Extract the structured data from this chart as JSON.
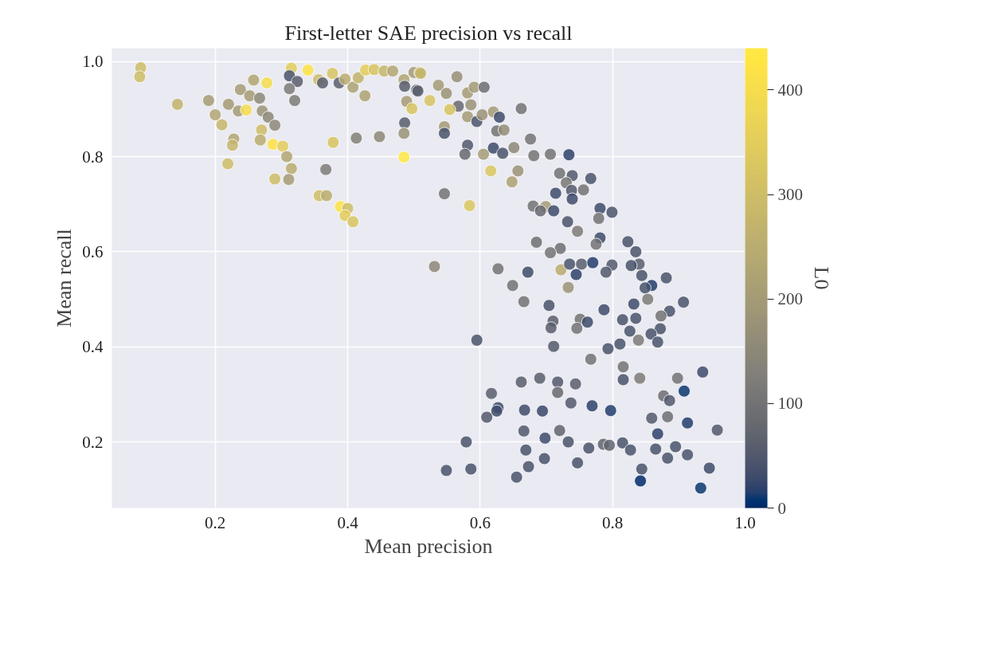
{
  "chart_data": {
    "type": "scatter",
    "title": "First-letter SAE precision vs recall",
    "xlabel": "Mean precision",
    "ylabel": "Mean recall",
    "clabel": "L0",
    "xlim": [
      0.044,
      1.0
    ],
    "xticks": [
      0.2,
      0.4,
      0.6,
      0.8,
      {
        "value": 1.0,
        "label": "1.0"
      }
    ],
    "ylim": [
      0.061,
      1.028
    ],
    "yticks": [
      0.2,
      0.4,
      0.6,
      0.8,
      {
        "value": 1.0,
        "label": "1.0"
      }
    ],
    "clim": [
      0,
      440
    ],
    "cticks": [
      0,
      100,
      200,
      300,
      400
    ],
    "grid": true,
    "marker": "circle",
    "x": [
      0.0875,
      0.086,
      0.143,
      0.19,
      0.2,
      0.21,
      0.22,
      0.228,
      0.226,
      0.219,
      0.238,
      0.235,
      0.247,
      0.252,
      0.258,
      0.267,
      0.278,
      0.271,
      0.28,
      0.29,
      0.27,
      0.268,
      0.287,
      0.302,
      0.308,
      0.315,
      0.311,
      0.29,
      0.315,
      0.312,
      0.324,
      0.312,
      0.32,
      0.34,
      0.356,
      0.362,
      0.377,
      0.387,
      0.396,
      0.408,
      0.416,
      0.427,
      0.44,
      0.455,
      0.468,
      0.426,
      0.485,
      0.486,
      0.504,
      0.5,
      0.509,
      0.489,
      0.497,
      0.486,
      0.485,
      0.485,
      0.378,
      0.413,
      0.448,
      0.367,
      0.357,
      0.368,
      0.389,
      0.4,
      0.396,
      0.408,
      0.51,
      0.506,
      0.524,
      0.537,
      0.549,
      0.565,
      0.567,
      0.554,
      0.581,
      0.591,
      0.606,
      0.586,
      0.581,
      0.595,
      0.603,
      0.62,
      0.629,
      0.625,
      0.636,
      0.662,
      0.546,
      0.546,
      0.581,
      0.577,
      0.605,
      0.62,
      0.634,
      0.651,
      0.676,
      0.681,
      0.706,
      0.734,
      0.616,
      0.657,
      0.648,
      0.546,
      0.584,
      0.72,
      0.739,
      0.767,
      0.73,
      0.738,
      0.756,
      0.714,
      0.739,
      0.68,
      0.699,
      0.711,
      0.691,
      0.732,
      0.747,
      0.781,
      0.799,
      0.779,
      0.781,
      0.775,
      0.685,
      0.721,
      0.706,
      0.823,
      0.835,
      0.531,
      0.627,
      0.672,
      0.722,
      0.735,
      0.753,
      0.77,
      0.799,
      0.79,
      0.84,
      0.828,
      0.844,
      0.881,
      0.745,
      0.649,
      0.666,
      0.704,
      0.733,
      0.859,
      0.849,
      0.853,
      0.832,
      0.907,
      0.886,
      0.873,
      0.872,
      0.858,
      0.868,
      0.839,
      0.835,
      0.815,
      0.826,
      0.811,
      0.793,
      0.787,
      0.71,
      0.707,
      0.751,
      0.762,
      0.746,
      0.711,
      0.595,
      0.767,
      0.816,
      0.841,
      0.816,
      0.898,
      0.936,
      0.908,
      0.877,
      0.886,
      0.883,
      0.859,
      0.913,
      0.958,
      0.868,
      0.662,
      0.69,
      0.717,
      0.744,
      0.717,
      0.617,
      0.627,
      0.625,
      0.61,
      0.667,
      0.694,
      0.737,
      0.769,
      0.797,
      0.666,
      0.698,
      0.72,
      0.733,
      0.764,
      0.786,
      0.795,
      0.815,
      0.827,
      0.865,
      0.883,
      0.895,
      0.913,
      0.946,
      0.933,
      0.844,
      0.842,
      0.579,
      0.549,
      0.586,
      0.655,
      0.673,
      0.697,
      0.747,
      0.669
    ],
    "values": [
      0.987,
      0.968,
      0.91,
      0.918,
      0.888,
      0.867,
      0.91,
      0.837,
      0.824,
      0.785,
      0.941,
      0.896,
      0.898,
      0.928,
      0.961,
      0.923,
      0.955,
      0.896,
      0.883,
      0.866,
      0.856,
      0.835,
      0.826,
      0.822,
      0.8,
      0.775,
      0.752,
      0.753,
      0.986,
      0.97,
      0.958,
      0.943,
      0.918,
      0.982,
      0.962,
      0.955,
      0.975,
      0.955,
      0.963,
      0.946,
      0.966,
      0.982,
      0.983,
      0.98,
      0.98,
      0.928,
      0.962,
      0.948,
      0.94,
      0.977,
      0.977,
      0.916,
      0.901,
      0.871,
      0.849,
      0.799,
      0.83,
      0.839,
      0.842,
      0.773,
      0.718,
      0.718,
      0.695,
      0.691,
      0.676,
      0.663,
      0.975,
      0.938,
      0.918,
      0.95,
      0.933,
      0.968,
      0.906,
      0.899,
      0.934,
      0.946,
      0.946,
      0.909,
      0.884,
      0.874,
      0.888,
      0.894,
      0.883,
      0.854,
      0.856,
      0.901,
      0.863,
      0.849,
      0.824,
      0.805,
      0.805,
      0.818,
      0.807,
      0.819,
      0.837,
      0.802,
      0.805,
      0.804,
      0.77,
      0.77,
      0.747,
      0.722,
      0.697,
      0.765,
      0.76,
      0.754,
      0.745,
      0.729,
      0.73,
      0.723,
      0.711,
      0.696,
      0.695,
      0.686,
      0.686,
      0.663,
      0.643,
      0.691,
      0.683,
      0.67,
      0.629,
      0.616,
      0.62,
      0.607,
      0.598,
      0.621,
      0.6,
      0.569,
      0.564,
      0.557,
      0.562,
      0.574,
      0.574,
      0.577,
      0.572,
      0.557,
      0.574,
      0.571,
      0.55,
      0.545,
      0.552,
      0.529,
      0.495,
      0.487,
      0.525,
      0.529,
      0.524,
      0.5,
      0.49,
      0.494,
      0.475,
      0.465,
      0.438,
      0.427,
      0.41,
      0.414,
      0.46,
      0.457,
      0.433,
      0.406,
      0.396,
      0.478,
      0.454,
      0.44,
      0.458,
      0.452,
      0.439,
      0.401,
      0.414,
      0.374,
      0.358,
      0.334,
      0.331,
      0.334,
      0.347,
      0.307,
      0.297,
      0.287,
      0.253,
      0.25,
      0.24,
      0.225,
      0.217,
      0.326,
      0.334,
      0.326,
      0.322,
      0.304,
      0.302,
      0.272,
      0.265,
      0.252,
      0.267,
      0.265,
      0.282,
      0.276,
      0.266,
      0.223,
      0.208,
      0.224,
      0.2,
      0.187,
      0.195,
      0.193,
      0.198,
      0.183,
      0.185,
      0.166,
      0.19,
      0.173,
      0.145,
      0.103,
      0.143,
      0.118,
      0.2,
      0.14,
      0.143,
      0.126,
      0.148,
      0.165,
      0.156,
      0.183
    ],
    "cvalues": [
      300,
      300,
      270,
      200,
      230,
      280,
      200,
      230,
      280,
      300,
      200,
      200,
      400,
      200,
      230,
      150,
      400,
      180,
      150,
      150,
      300,
      250,
      420,
      350,
      230,
      250,
      200,
      300,
      350,
      40,
      60,
      120,
      120,
      420,
      300,
      60,
      320,
      60,
      250,
      220,
      270,
      350,
      320,
      280,
      230,
      220,
      230,
      60,
      70,
      200,
      250,
      200,
      320,
      60,
      180,
      440,
      320,
      130,
      150,
      120,
      300,
      250,
      420,
      300,
      350,
      320,
      280,
      60,
      320,
      200,
      180,
      170,
      80,
      320,
      200,
      200,
      90,
      180,
      200,
      40,
      180,
      200,
      30,
      100,
      160,
      100,
      200,
      40,
      50,
      80,
      200,
      30,
      40,
      150,
      100,
      100,
      100,
      20,
      330,
      180,
      220,
      100,
      330,
      100,
      50,
      40,
      110,
      50,
      100,
      30,
      30,
      100,
      200,
      30,
      80,
      40,
      120,
      30,
      40,
      100,
      30,
      100,
      90,
      90,
      100,
      40,
      40,
      150,
      100,
      30,
      250,
      40,
      60,
      15,
      50,
      50,
      60,
      40,
      40,
      40,
      20,
      100,
      100,
      40,
      180,
      15,
      40,
      120,
      30,
      40,
      40,
      100,
      40,
      40,
      40,
      120,
      40,
      40,
      40,
      40,
      40,
      30,
      60,
      60,
      100,
      30,
      100,
      50,
      40,
      100,
      100,
      120,
      40,
      100,
      30,
      10,
      90,
      50,
      90,
      50,
      15,
      50,
      20,
      60,
      60,
      50,
      60,
      80,
      60,
      30,
      30,
      50,
      30,
      25,
      50,
      20,
      15,
      50,
      30,
      70,
      40,
      40,
      70,
      70,
      40,
      40,
      40,
      40,
      40,
      40,
      30,
      10,
      40,
      2,
      40,
      40,
      40,
      40,
      40,
      40,
      40,
      40
    ]
  }
}
